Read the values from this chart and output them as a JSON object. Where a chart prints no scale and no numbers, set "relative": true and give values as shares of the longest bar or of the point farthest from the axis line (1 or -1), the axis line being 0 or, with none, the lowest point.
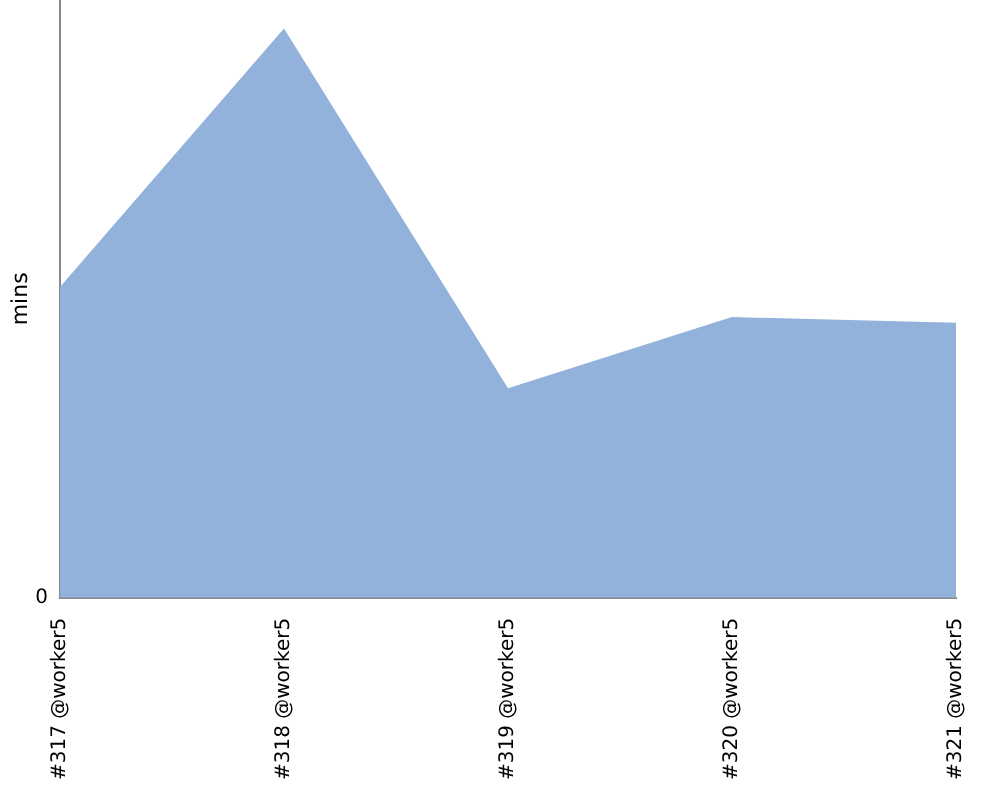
{
  "chart_data": {
    "type": "area",
    "ylabel": "mins",
    "relative": true,
    "annotations": [
      "0"
    ],
    "categories": [
      "#317 @worker5",
      "#318 @worker5",
      "#319 @worker5",
      "#320 @worker5",
      "#321 @worker5"
    ],
    "series": [
      {
        "color": "#92b2dc",
        "values": [
          0.546,
          1,
          0.368,
          0.493,
          0.483
        ]
      }
    ],
    "grid": false,
    "legend": false
  }
}
